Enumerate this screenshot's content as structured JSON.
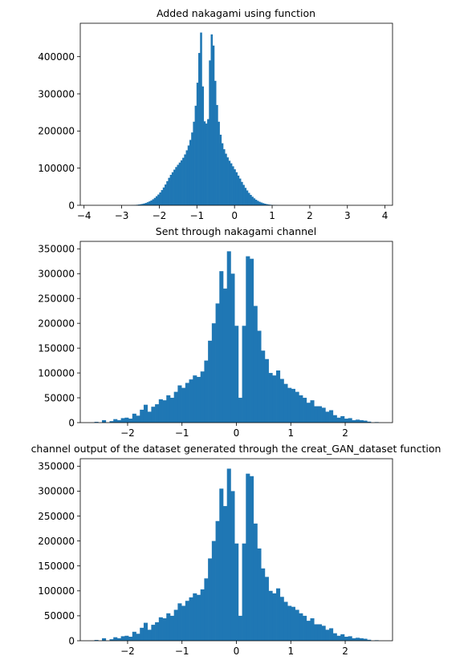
{
  "chart_data": [
    {
      "type": "bar",
      "title": "Added nakagami using function",
      "xlim": [
        -4.1,
        4.2
      ],
      "ylim": [
        0,
        490000
      ],
      "xticks": [
        -4,
        -3,
        -2,
        -1,
        0,
        1,
        2,
        3,
        4
      ],
      "xtick_labels": [
        "−4",
        "−3",
        "−2",
        "−1",
        "0",
        "1",
        "2",
        "3",
        "4"
      ],
      "yticks": [
        0,
        100000,
        200000,
        300000,
        400000
      ],
      "ytick_labels": [
        "0",
        "100000",
        "200000",
        "300000",
        "400000"
      ],
      "bar_color": "#1f77b4",
      "bin_edges": [
        -3.7,
        3.85
      ],
      "values": [
        0,
        0,
        0,
        0,
        0,
        0,
        0,
        0,
        0,
        0,
        0,
        0,
        0,
        0,
        0,
        0,
        0,
        0,
        0,
        0,
        300,
        500,
        900,
        1400,
        2100,
        2800,
        3700,
        4900,
        6400,
        8300,
        10500,
        13000,
        16300,
        20000,
        24500,
        29000,
        34500,
        41000,
        48000,
        56000,
        65000,
        74000,
        82000,
        89000,
        96000,
        103000,
        109000,
        115000,
        121000,
        128000,
        137000,
        148000,
        161000,
        176000,
        196000,
        225000,
        268000,
        330000,
        410000,
        465000,
        320000,
        226000,
        220000,
        232000,
        390000,
        460000,
        430000,
        335000,
        270000,
        225000,
        190000,
        167000,
        151000,
        139000,
        129000,
        120000,
        113000,
        105000,
        97000,
        89000,
        80000,
        72000,
        63000,
        55000,
        47000,
        40000,
        33500,
        28000,
        23000,
        18800,
        15000,
        12000,
        9500,
        7500,
        5800,
        4300,
        3200,
        2300,
        1600,
        1100,
        700,
        450,
        250,
        0,
        0,
        0,
        0,
        0,
        0,
        0,
        0,
        0,
        0,
        0,
        0,
        0,
        0,
        0,
        0,
        0,
        0,
        0,
        0,
        0,
        0,
        0,
        0,
        0,
        0,
        0,
        0,
        0,
        0,
        0,
        0,
        0,
        0,
        0,
        0,
        0,
        0,
        0,
        0,
        0,
        0,
        0,
        0,
        0,
        0,
        0,
        0,
        0,
        0,
        0,
        0,
        0,
        0,
        0,
        0,
        0
      ]
    },
    {
      "type": "bar",
      "title": "Sent through nakagami channel",
      "xlim": [
        -2.87,
        2.87
      ],
      "ylim": [
        0,
        365000
      ],
      "xticks": [
        -2,
        -1,
        0,
        1,
        2
      ],
      "xtick_labels": [
        "−2",
        "−1",
        "0",
        "1",
        "2"
      ],
      "yticks": [
        0,
        50000,
        100000,
        150000,
        200000,
        250000,
        300000,
        350000
      ],
      "ytick_labels": [
        "0",
        "50000",
        "100000",
        "150000",
        "200000",
        "250000",
        "300000",
        "350000"
      ],
      "bar_color": "#1f77b4",
      "bin_edges": [
        -2.61,
        2.61
      ],
      "values": [
        1500,
        0,
        5000,
        0,
        3000,
        7000,
        5000,
        9000,
        10000,
        8000,
        18000,
        14000,
        26000,
        36000,
        22000,
        32000,
        37000,
        47000,
        45000,
        55000,
        50000,
        62000,
        75000,
        70000,
        80000,
        87000,
        95000,
        92000,
        103000,
        125000,
        165000,
        200000,
        240000,
        305000,
        270000,
        345000,
        300000,
        195000,
        50000,
        195000,
        335000,
        330000,
        235000,
        185000,
        145000,
        128000,
        100000,
        95000,
        105000,
        88000,
        78000,
        70000,
        68000,
        62000,
        55000,
        50000,
        40000,
        45000,
        33000,
        33000,
        30000,
        22000,
        25000,
        15000,
        10000,
        13000,
        8000,
        9000,
        5000,
        6000,
        5000,
        4000,
        2000,
        0,
        1000
      ]
    },
    {
      "type": "bar",
      "title": "channel output of the dataset generated through the creat_GAN_dataset function",
      "xlim": [
        -2.87,
        2.87
      ],
      "ylim": [
        0,
        365000
      ],
      "xticks": [
        -2,
        -1,
        0,
        1,
        2
      ],
      "xtick_labels": [
        "−2",
        "−1",
        "0",
        "1",
        "2"
      ],
      "yticks": [
        0,
        50000,
        100000,
        150000,
        200000,
        250000,
        300000,
        350000
      ],
      "ytick_labels": [
        "0",
        "50000",
        "100000",
        "150000",
        "200000",
        "250000",
        "300000",
        "350000"
      ],
      "bar_color": "#1f77b4",
      "bin_edges": [
        -2.61,
        2.61
      ],
      "values": [
        1500,
        0,
        5000,
        0,
        3000,
        7000,
        5000,
        9000,
        10000,
        8000,
        18000,
        14000,
        26000,
        36000,
        22000,
        32000,
        37000,
        47000,
        45000,
        55000,
        50000,
        62000,
        75000,
        70000,
        80000,
        87000,
        95000,
        92000,
        103000,
        125000,
        165000,
        200000,
        240000,
        305000,
        270000,
        345000,
        300000,
        195000,
        50000,
        195000,
        335000,
        330000,
        235000,
        185000,
        145000,
        128000,
        100000,
        95000,
        105000,
        88000,
        78000,
        70000,
        68000,
        62000,
        55000,
        50000,
        40000,
        45000,
        33000,
        33000,
        30000,
        22000,
        25000,
        15000,
        10000,
        13000,
        8000,
        9000,
        5000,
        6000,
        5000,
        4000,
        2000,
        0,
        1000
      ]
    }
  ]
}
